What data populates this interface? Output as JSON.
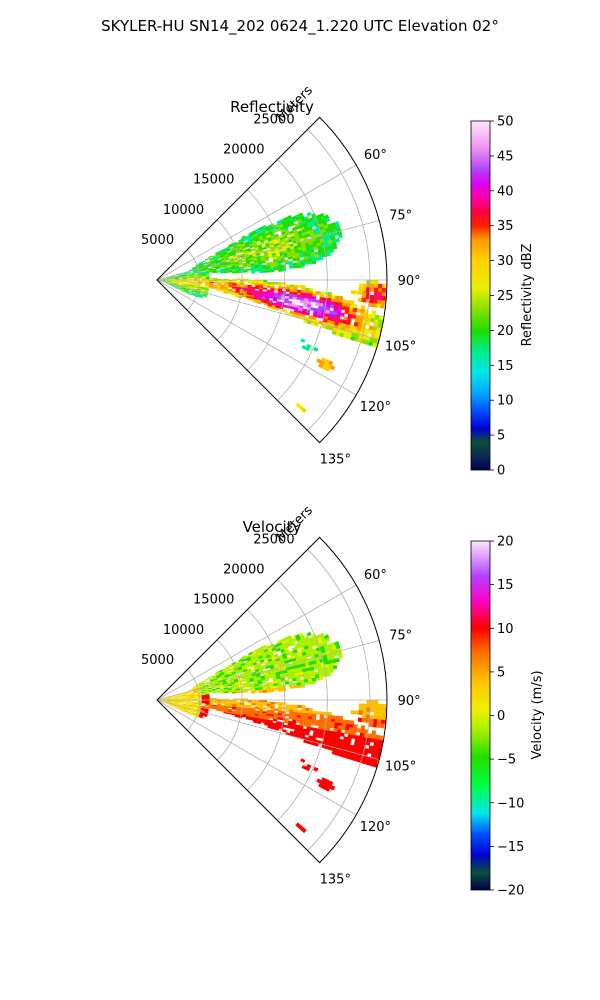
{
  "figure": {
    "suptitle": "SKYLER-HU  SN14_202  0624_1.220 UTC Elevation 02°"
  },
  "chart_data": [
    {
      "type": "heatmap",
      "title": "Reflectivity",
      "projection": "polar",
      "theta_range_deg": [
        45,
        135
      ],
      "r_range": [
        0,
        27000
      ],
      "radial_axis_label": "Meters",
      "radial_ticks": [
        5000,
        10000,
        15000,
        20000,
        25000
      ],
      "radial_tick_labels": [
        "5000",
        "10000",
        "15000",
        "20000",
        "25000"
      ],
      "angle_ticks": [
        60,
        75,
        90,
        105,
        120,
        135
      ],
      "angle_tick_labels": [
        "60°",
        "75°",
        "90°",
        "105°",
        "120°",
        "135°"
      ],
      "grid": true,
      "colorbar": {
        "label": "Reflectivity dBZ",
        "vmin": 0,
        "vmax": 50,
        "ticks": [
          0,
          5,
          10,
          15,
          20,
          25,
          30,
          35,
          40,
          45,
          50
        ],
        "tick_labels": [
          "0",
          "5",
          "10",
          "15",
          "20",
          "25",
          "30",
          "35",
          "40",
          "45",
          "50"
        ]
      }
    },
    {
      "type": "heatmap",
      "title": "Velocity",
      "projection": "polar",
      "theta_range_deg": [
        45,
        135
      ],
      "r_range": [
        0,
        27000
      ],
      "radial_axis_label": "Meters",
      "radial_ticks": [
        5000,
        10000,
        15000,
        20000,
        25000
      ],
      "radial_tick_labels": [
        "5000",
        "10000",
        "15000",
        "20000",
        "25000"
      ],
      "angle_ticks": [
        60,
        75,
        90,
        105,
        120,
        135
      ],
      "angle_tick_labels": [
        "60°",
        "75°",
        "90°",
        "105°",
        "120°",
        "135°"
      ],
      "grid": true,
      "colorbar": {
        "label": "Velocity (m/s)",
        "vmin": -20,
        "vmax": 20,
        "ticks": [
          -20,
          -15,
          -10,
          -5,
          0,
          5,
          10,
          15,
          20
        ],
        "tick_labels": [
          "−20",
          "−15",
          "−10",
          "−5",
          "0",
          "5",
          "10",
          "15",
          "20"
        ]
      }
    }
  ]
}
